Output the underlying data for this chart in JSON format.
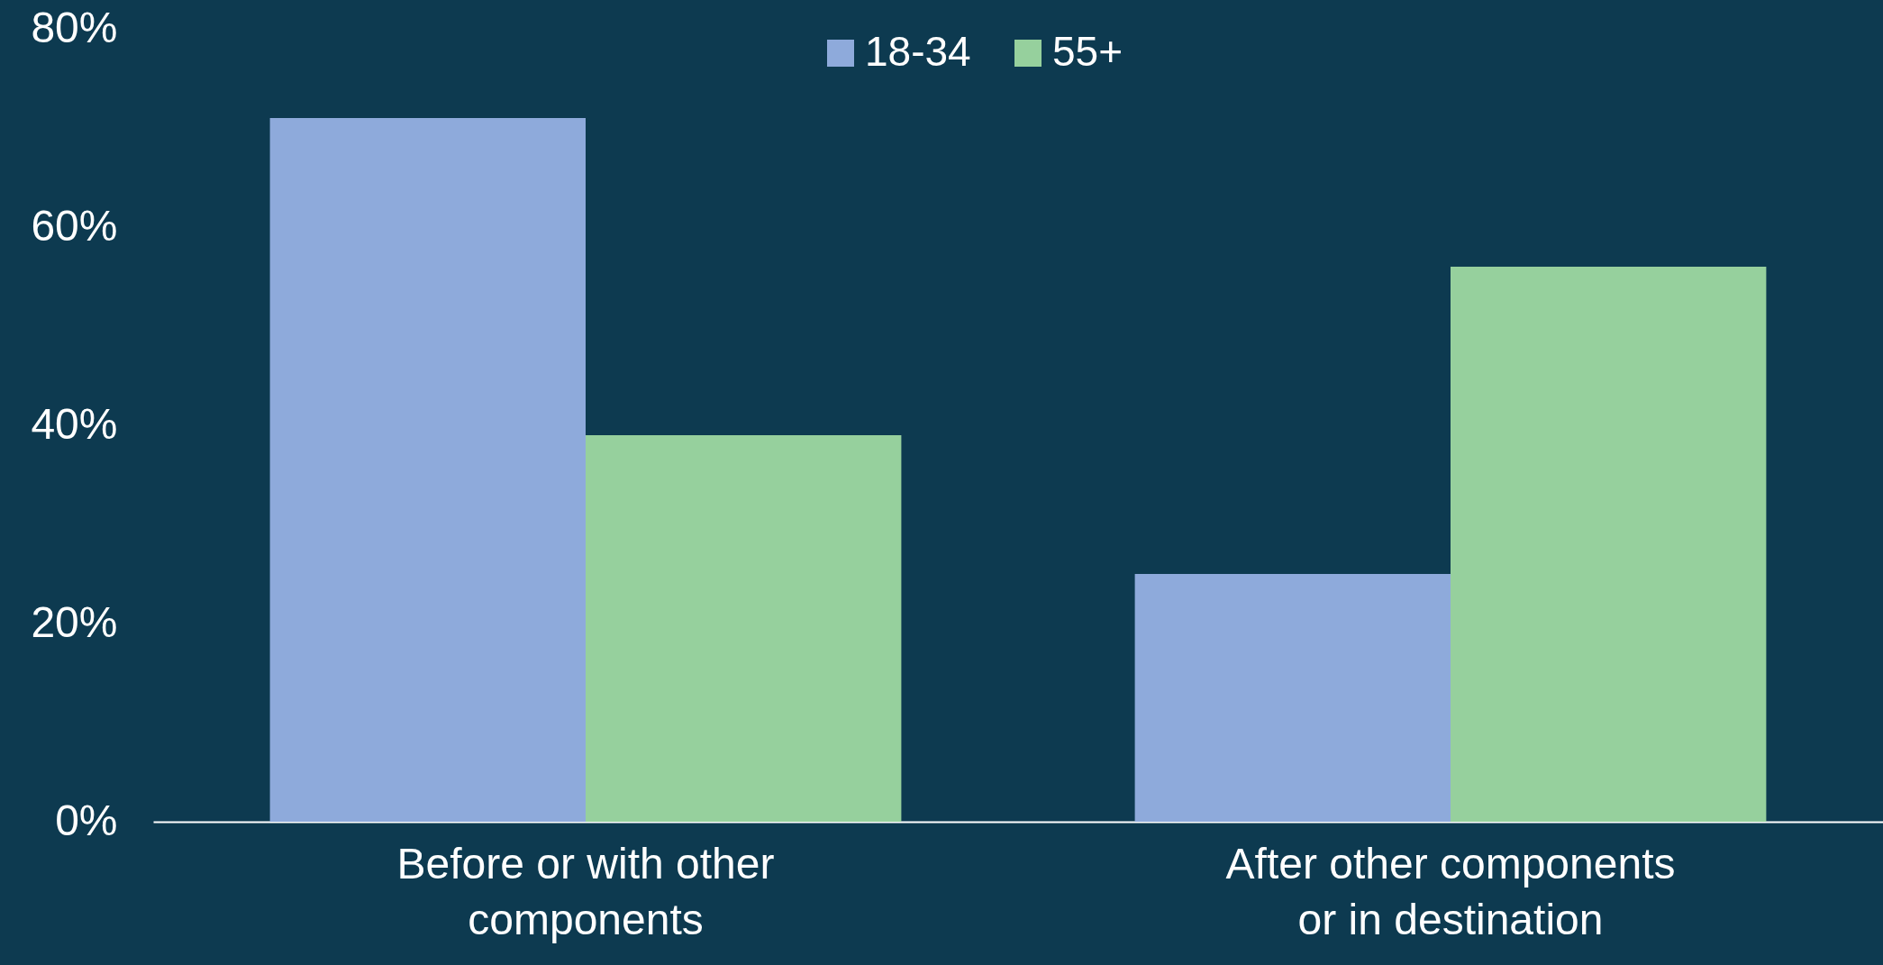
{
  "chart_data": {
    "type": "bar",
    "categories": [
      "Before or with other components",
      "After other components or in destination"
    ],
    "series": [
      {
        "name": "18-34",
        "color": "#8eaadb",
        "values": [
          71,
          25
        ]
      },
      {
        "name": "55+",
        "color": "#96d09d",
        "values": [
          39,
          56
        ]
      }
    ],
    "ylim": [
      0,
      80
    ],
    "yticks": [
      {
        "value": 0,
        "label": "0%"
      },
      {
        "value": 20,
        "label": "20%"
      },
      {
        "value": 40,
        "label": "40%"
      },
      {
        "value": 60,
        "label": "60%"
      },
      {
        "value": 80,
        "label": "80%"
      }
    ],
    "grid": false,
    "legend": "top"
  }
}
